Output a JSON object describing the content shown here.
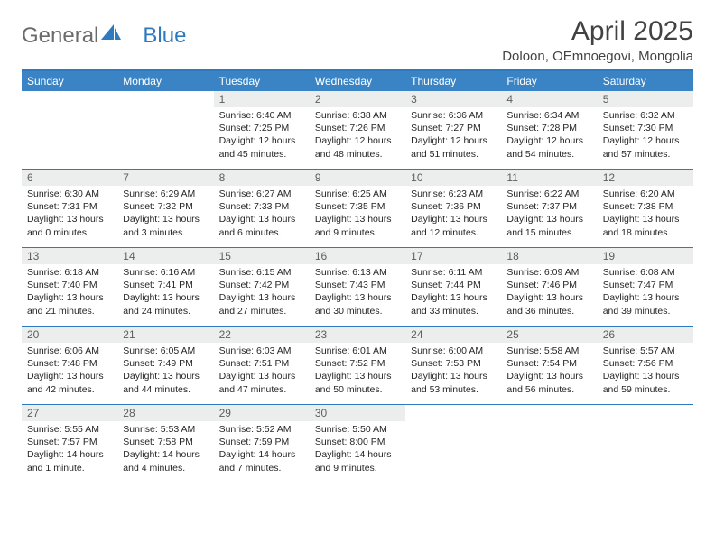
{
  "logo": {
    "word1": "General",
    "word2": "Blue",
    "sail_color": "#2f7abf"
  },
  "title": "April 2025",
  "subtitle": "Doloon, OEmnoegovi, Mongolia",
  "colors": {
    "header_bar": "#3a84c5",
    "header_border": "#2f7abf",
    "daynum_bg": "#eceded",
    "text": "#262626",
    "title_text": "#424242",
    "page_bg": "#ffffff"
  },
  "typography": {
    "title_fontsize": 30,
    "subtitle_fontsize": 15,
    "dow_fontsize": 12,
    "body_fontsize": 10.5
  },
  "dow": [
    "Sunday",
    "Monday",
    "Tuesday",
    "Wednesday",
    "Thursday",
    "Friday",
    "Saturday"
  ],
  "weeks": [
    [
      {
        "n": "",
        "sr": "",
        "ss": "",
        "dl": ""
      },
      {
        "n": "",
        "sr": "",
        "ss": "",
        "dl": ""
      },
      {
        "n": "1",
        "sr": "Sunrise: 6:40 AM",
        "ss": "Sunset: 7:25 PM",
        "dl": "Daylight: 12 hours and 45 minutes."
      },
      {
        "n": "2",
        "sr": "Sunrise: 6:38 AM",
        "ss": "Sunset: 7:26 PM",
        "dl": "Daylight: 12 hours and 48 minutes."
      },
      {
        "n": "3",
        "sr": "Sunrise: 6:36 AM",
        "ss": "Sunset: 7:27 PM",
        "dl": "Daylight: 12 hours and 51 minutes."
      },
      {
        "n": "4",
        "sr": "Sunrise: 6:34 AM",
        "ss": "Sunset: 7:28 PM",
        "dl": "Daylight: 12 hours and 54 minutes."
      },
      {
        "n": "5",
        "sr": "Sunrise: 6:32 AM",
        "ss": "Sunset: 7:30 PM",
        "dl": "Daylight: 12 hours and 57 minutes."
      }
    ],
    [
      {
        "n": "6",
        "sr": "Sunrise: 6:30 AM",
        "ss": "Sunset: 7:31 PM",
        "dl": "Daylight: 13 hours and 0 minutes."
      },
      {
        "n": "7",
        "sr": "Sunrise: 6:29 AM",
        "ss": "Sunset: 7:32 PM",
        "dl": "Daylight: 13 hours and 3 minutes."
      },
      {
        "n": "8",
        "sr": "Sunrise: 6:27 AM",
        "ss": "Sunset: 7:33 PM",
        "dl": "Daylight: 13 hours and 6 minutes."
      },
      {
        "n": "9",
        "sr": "Sunrise: 6:25 AM",
        "ss": "Sunset: 7:35 PM",
        "dl": "Daylight: 13 hours and 9 minutes."
      },
      {
        "n": "10",
        "sr": "Sunrise: 6:23 AM",
        "ss": "Sunset: 7:36 PM",
        "dl": "Daylight: 13 hours and 12 minutes."
      },
      {
        "n": "11",
        "sr": "Sunrise: 6:22 AM",
        "ss": "Sunset: 7:37 PM",
        "dl": "Daylight: 13 hours and 15 minutes."
      },
      {
        "n": "12",
        "sr": "Sunrise: 6:20 AM",
        "ss": "Sunset: 7:38 PM",
        "dl": "Daylight: 13 hours and 18 minutes."
      }
    ],
    [
      {
        "n": "13",
        "sr": "Sunrise: 6:18 AM",
        "ss": "Sunset: 7:40 PM",
        "dl": "Daylight: 13 hours and 21 minutes."
      },
      {
        "n": "14",
        "sr": "Sunrise: 6:16 AM",
        "ss": "Sunset: 7:41 PM",
        "dl": "Daylight: 13 hours and 24 minutes."
      },
      {
        "n": "15",
        "sr": "Sunrise: 6:15 AM",
        "ss": "Sunset: 7:42 PM",
        "dl": "Daylight: 13 hours and 27 minutes."
      },
      {
        "n": "16",
        "sr": "Sunrise: 6:13 AM",
        "ss": "Sunset: 7:43 PM",
        "dl": "Daylight: 13 hours and 30 minutes."
      },
      {
        "n": "17",
        "sr": "Sunrise: 6:11 AM",
        "ss": "Sunset: 7:44 PM",
        "dl": "Daylight: 13 hours and 33 minutes."
      },
      {
        "n": "18",
        "sr": "Sunrise: 6:09 AM",
        "ss": "Sunset: 7:46 PM",
        "dl": "Daylight: 13 hours and 36 minutes."
      },
      {
        "n": "19",
        "sr": "Sunrise: 6:08 AM",
        "ss": "Sunset: 7:47 PM",
        "dl": "Daylight: 13 hours and 39 minutes."
      }
    ],
    [
      {
        "n": "20",
        "sr": "Sunrise: 6:06 AM",
        "ss": "Sunset: 7:48 PM",
        "dl": "Daylight: 13 hours and 42 minutes."
      },
      {
        "n": "21",
        "sr": "Sunrise: 6:05 AM",
        "ss": "Sunset: 7:49 PM",
        "dl": "Daylight: 13 hours and 44 minutes."
      },
      {
        "n": "22",
        "sr": "Sunrise: 6:03 AM",
        "ss": "Sunset: 7:51 PM",
        "dl": "Daylight: 13 hours and 47 minutes."
      },
      {
        "n": "23",
        "sr": "Sunrise: 6:01 AM",
        "ss": "Sunset: 7:52 PM",
        "dl": "Daylight: 13 hours and 50 minutes."
      },
      {
        "n": "24",
        "sr": "Sunrise: 6:00 AM",
        "ss": "Sunset: 7:53 PM",
        "dl": "Daylight: 13 hours and 53 minutes."
      },
      {
        "n": "25",
        "sr": "Sunrise: 5:58 AM",
        "ss": "Sunset: 7:54 PM",
        "dl": "Daylight: 13 hours and 56 minutes."
      },
      {
        "n": "26",
        "sr": "Sunrise: 5:57 AM",
        "ss": "Sunset: 7:56 PM",
        "dl": "Daylight: 13 hours and 59 minutes."
      }
    ],
    [
      {
        "n": "27",
        "sr": "Sunrise: 5:55 AM",
        "ss": "Sunset: 7:57 PM",
        "dl": "Daylight: 14 hours and 1 minute."
      },
      {
        "n": "28",
        "sr": "Sunrise: 5:53 AM",
        "ss": "Sunset: 7:58 PM",
        "dl": "Daylight: 14 hours and 4 minutes."
      },
      {
        "n": "29",
        "sr": "Sunrise: 5:52 AM",
        "ss": "Sunset: 7:59 PM",
        "dl": "Daylight: 14 hours and 7 minutes."
      },
      {
        "n": "30",
        "sr": "Sunrise: 5:50 AM",
        "ss": "Sunset: 8:00 PM",
        "dl": "Daylight: 14 hours and 9 minutes."
      },
      {
        "n": "",
        "sr": "",
        "ss": "",
        "dl": ""
      },
      {
        "n": "",
        "sr": "",
        "ss": "",
        "dl": ""
      },
      {
        "n": "",
        "sr": "",
        "ss": "",
        "dl": ""
      }
    ]
  ]
}
